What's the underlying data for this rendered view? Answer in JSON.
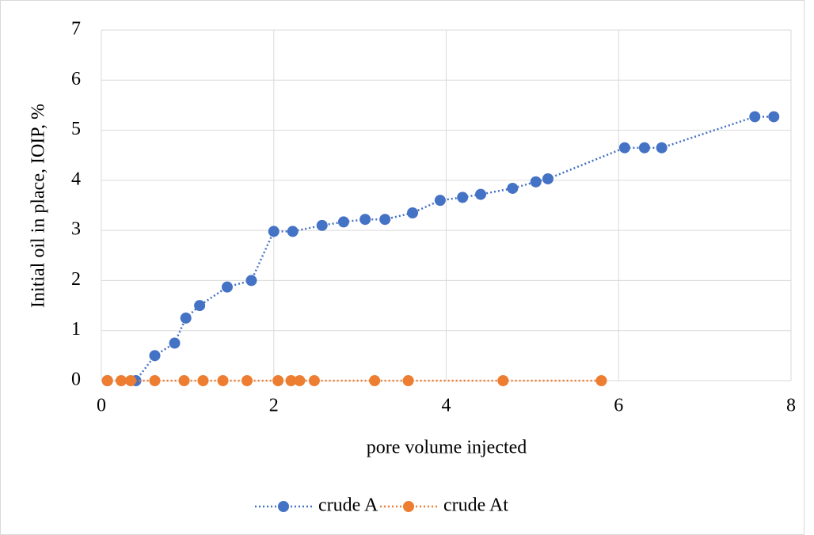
{
  "chart_data": {
    "type": "line",
    "x_label": "pore volume injected",
    "y_label": "Initial oil in place, IOIP, %",
    "xlim": [
      0,
      8
    ],
    "xticks": [
      0,
      2,
      4,
      6,
      8
    ],
    "ylim": [
      0,
      7
    ],
    "yticks": [
      0,
      1,
      2,
      3,
      4,
      5,
      6,
      7
    ],
    "grid": true,
    "legend": "bottom",
    "series": [
      {
        "name": "crude A",
        "color": "#4472c4",
        "x": [
          0.07,
          0.4,
          0.62,
          0.85,
          0.98,
          1.14,
          1.46,
          1.74,
          2.0,
          2.22,
          2.56,
          2.81,
          3.06,
          3.29,
          3.61,
          3.93,
          4.19,
          4.4,
          4.77,
          5.04,
          5.18,
          6.07,
          6.3,
          6.5,
          7.58,
          7.8
        ],
        "values": [
          0,
          0,
          0.5,
          0.75,
          1.25,
          1.5,
          1.87,
          2.0,
          2.98,
          2.98,
          3.1,
          3.17,
          3.22,
          3.22,
          3.35,
          3.6,
          3.66,
          3.72,
          3.84,
          3.97,
          4.03,
          4.65,
          4.65,
          4.65,
          5.27,
          5.27
        ]
      },
      {
        "name": "crude At",
        "color": "#ed7d31",
        "x": [
          0.07,
          0.23,
          0.34,
          0.62,
          0.96,
          1.18,
          1.41,
          1.69,
          2.05,
          2.2,
          2.3,
          2.47,
          3.17,
          3.56,
          4.66,
          5.8
        ],
        "values": [
          0,
          0,
          0,
          0,
          0,
          0,
          0,
          0,
          0,
          0,
          0,
          0,
          0,
          0,
          0,
          0
        ]
      }
    ]
  }
}
